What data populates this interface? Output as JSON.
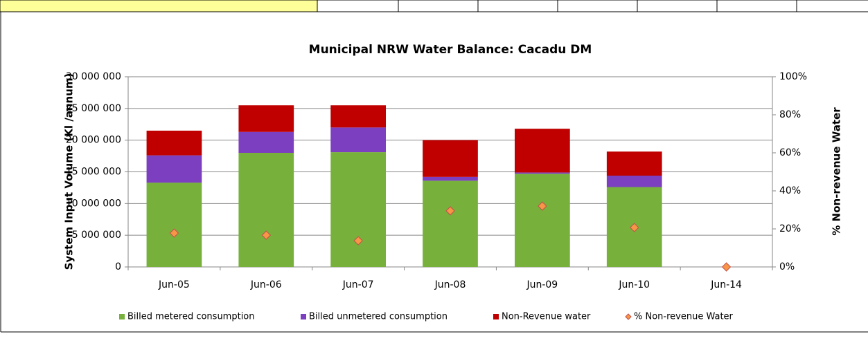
{
  "chart_data": {
    "type": "bar",
    "stacked": true,
    "title": "Municipal NRW Water Balance:  Cacadu DM",
    "y_label": "System Input Volume (Kl /annum)",
    "y2_label": "% Non-revenue Water",
    "categories": [
      "Jun-05",
      "Jun-06",
      "Jun-07",
      "Jun-08",
      "Jun-09",
      "Jun-10",
      "Jun-14"
    ],
    "series": [
      {
        "name": "Billed metered consumption",
        "type": "bar",
        "color": "#77b13b",
        "values": [
          13300000,
          18000000,
          18100000,
          13600000,
          14700000,
          12600000,
          0
        ]
      },
      {
        "name": "Billed unmetered consumption",
        "type": "bar",
        "color": "#7b3fbf",
        "values": [
          4300000,
          3300000,
          3900000,
          600000,
          200000,
          1800000,
          0
        ]
      },
      {
        "name": "Non-Revenue water",
        "type": "bar",
        "color": "#c00000",
        "values": [
          3900000,
          4200000,
          3500000,
          5800000,
          6900000,
          3800000,
          0
        ]
      },
      {
        "name": "% Non-revenue Water",
        "type": "scatter",
        "marker": "diamond",
        "axis": "y2",
        "color": "#f79646",
        "values": [
          17.8,
          16.7,
          13.8,
          29.5,
          32,
          20.7,
          0
        ]
      }
    ],
    "ylim": [
      0,
      30000000
    ],
    "yticks": [
      0,
      {
        "value": 5000000,
        "label": "5 000 000"
      },
      {
        "value": 10000000,
        "label": "10 000 000"
      },
      {
        "value": 15000000,
        "label": "15 000 000"
      },
      {
        "value": 20000000,
        "label": "20 000 000"
      },
      {
        "value": 25000000,
        "label": "25 000 000"
      },
      {
        "value": 30000000,
        "label": "30 000 000"
      }
    ],
    "y2lim": [
      0,
      100
    ],
    "y2ticks": [
      {
        "value": 0,
        "label": "0%"
      },
      {
        "value": 20,
        "label": "20%"
      },
      {
        "value": 40,
        "label": "40%"
      },
      {
        "value": 60,
        "label": "60%"
      },
      {
        "value": 80,
        "label": "80%"
      },
      {
        "value": 100,
        "label": "100%"
      }
    ],
    "grid": true,
    "legend": "bottom"
  }
}
